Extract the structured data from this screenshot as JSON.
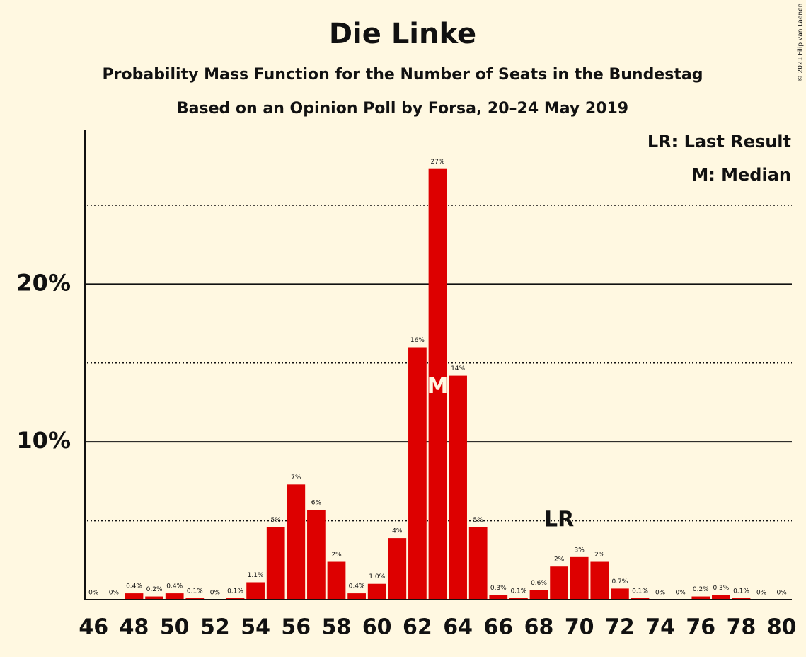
{
  "chart_data": {
    "type": "bar",
    "title": "Die Linke",
    "subtitle": "Probability Mass Function for the Number of Seats in the Bundestag",
    "subtitle2": "Based on an Opinion Poll by Forsa, 20–24 May 2019",
    "copyright": "© 2021 Filip van Laenen",
    "legend": [
      "LR: Last Result",
      "M: Median"
    ],
    "legend_position": "top-right",
    "x": [
      46,
      47,
      48,
      49,
      50,
      51,
      52,
      53,
      54,
      55,
      56,
      57,
      58,
      59,
      60,
      61,
      62,
      63,
      64,
      65,
      66,
      67,
      68,
      69,
      70,
      71,
      72,
      73,
      74,
      75,
      76,
      77,
      78,
      79,
      80
    ],
    "values": [
      0,
      0,
      0.4,
      0.2,
      0.4,
      0.1,
      0,
      0.1,
      1.1,
      4.6,
      7.3,
      5.7,
      2.4,
      0.4,
      1.0,
      3.9,
      16.0,
      27.3,
      14.2,
      4.6,
      0.3,
      0.1,
      0.6,
      2.1,
      2.7,
      2.4,
      0.7,
      0.1,
      0,
      0,
      0.2,
      0.3,
      0.1,
      0,
      0
    ],
    "value_labels": [
      "0%",
      "0%",
      "0.4%",
      "0.2%",
      "0.4%",
      "0.1%",
      "0%",
      "0.1%",
      "1.1%",
      "5%",
      "7%",
      "6%",
      "2%",
      "0.4%",
      "1.0%",
      "4%",
      "16%",
      "27%",
      "14%",
      "5%",
      "0.3%",
      "0.1%",
      "0.6%",
      "2%",
      "3%",
      "2%",
      "0.7%",
      "0.1%",
      "0%",
      "0%",
      "0.2%",
      "0.3%",
      "0.1%",
      "0%",
      "0%"
    ],
    "color": "#dd0000",
    "xlim": [
      45.5,
      80.5
    ],
    "xticks": [
      46,
      48,
      50,
      52,
      54,
      56,
      58,
      60,
      62,
      64,
      66,
      68,
      70,
      72,
      74,
      76,
      78,
      80
    ],
    "ylim": [
      0,
      29.8
    ],
    "yticks": [
      {
        "value": 10,
        "label": "10%"
      },
      {
        "value": 20,
        "label": "20%"
      }
    ],
    "minor_gridlines": [
      5,
      15,
      25
    ],
    "annotations": [
      {
        "text": "M",
        "x": 63
      },
      {
        "text": "LR",
        "x": 69
      }
    ]
  }
}
